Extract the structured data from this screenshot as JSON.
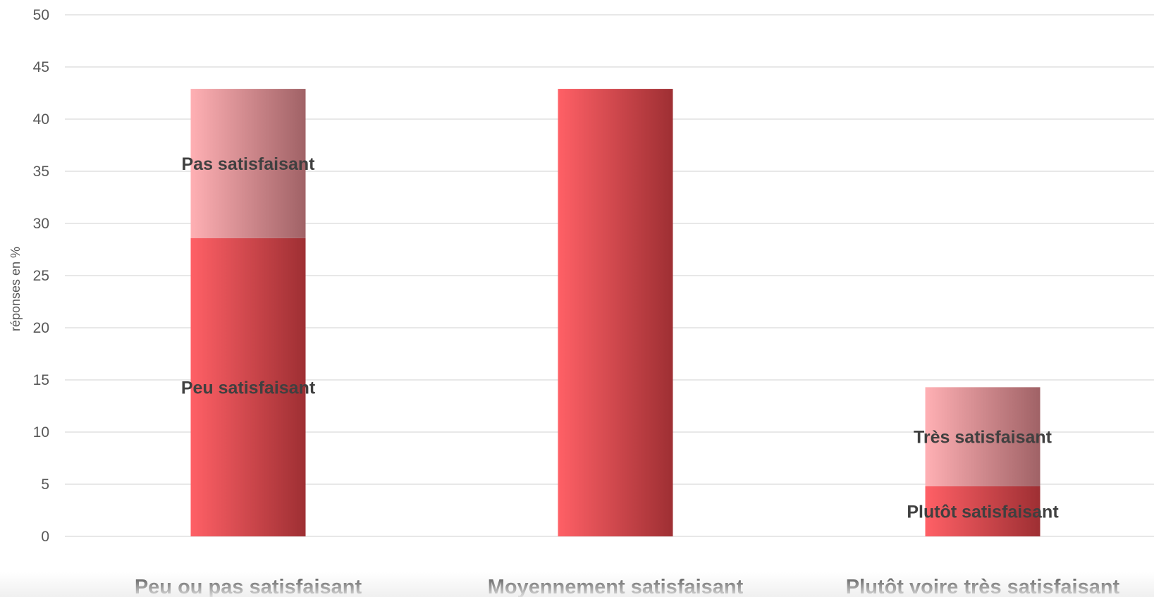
{
  "chart_data": {
    "type": "bar",
    "stacked": true,
    "categories": [
      "Peu ou pas satisfaisant",
      "Moyennement satisfaisant",
      "Plutôt voire très satisfaisant"
    ],
    "ylabel": "réponses en %",
    "ylim": [
      0,
      50
    ],
    "yticks": [
      0,
      5,
      10,
      15,
      20,
      25,
      30,
      35,
      40,
      45,
      50
    ],
    "grid": true,
    "legend": "none",
    "segments": [
      {
        "category": "Peu ou pas satisfaisant",
        "label": "Peu satisfaisant",
        "base": 0,
        "value": 28.6,
        "color_from": "#ff6066",
        "color_to": "#9e2f33"
      },
      {
        "category": "Peu ou pas satisfaisant",
        "label": "Pas satisfaisant",
        "base": 28.6,
        "value": 14.3,
        "color_from": "#ffb0b4",
        "color_to": "#a06266"
      },
      {
        "category": "Moyennement satisfaisant",
        "label": "",
        "base": 0,
        "value": 42.9,
        "color_from": "#ff6066",
        "color_to": "#9e2f33"
      },
      {
        "category": "Plutôt voire très satisfaisant",
        "label": "Plutôt satisfaisant",
        "base": 0,
        "value": 4.8,
        "color_from": "#ff6066",
        "color_to": "#9e2f33"
      },
      {
        "category": "Plutôt voire très satisfaisant",
        "label": "Très satisfaisant",
        "base": 4.8,
        "value": 9.5,
        "color_from": "#ffb0b4",
        "color_to": "#a06266"
      }
    ]
  }
}
